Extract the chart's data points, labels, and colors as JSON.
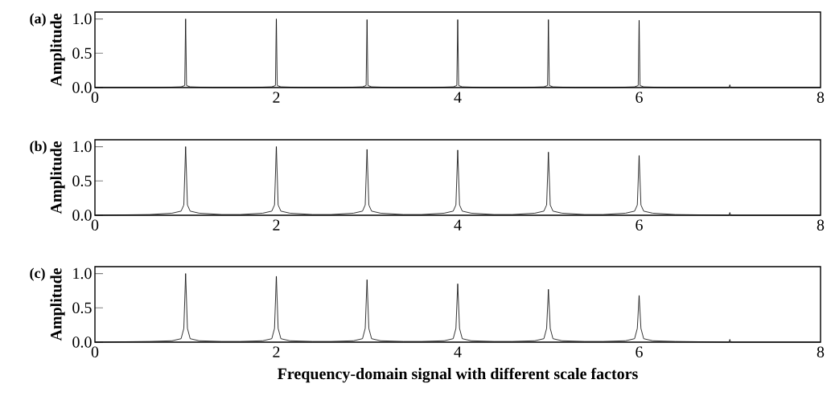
{
  "chart_data": [
    {
      "type": "line",
      "ylabel": "Amplitude",
      "annotations": [
        "(a)"
      ],
      "xlim": [
        0,
        8
      ],
      "ylim": [
        0,
        1.1
      ],
      "xticks": [
        0,
        2,
        4,
        6,
        8
      ],
      "yticks": [
        {
          "value": 0,
          "label": "0.0"
        },
        {
          "value": 0.5,
          "label": "0.5"
        },
        {
          "value": 1,
          "label": "1.0"
        }
      ],
      "grid": false,
      "marker": "none",
      "line_style": "solid",
      "series": [
        {
          "color": "#000000",
          "x": [
            0,
            0.7,
            0.95,
            0.99,
            1,
            1.01,
            1.05,
            1.3,
            1.7,
            1.95,
            1.99,
            2,
            2.01,
            2.05,
            2.3,
            2.7,
            2.95,
            2.99,
            3,
            3.01,
            3.05,
            3.3,
            3.7,
            3.95,
            3.99,
            4,
            4.01,
            4.05,
            4.3,
            4.7,
            4.95,
            4.99,
            5,
            5.01,
            5.05,
            5.3,
            5.7,
            5.95,
            5.99,
            6,
            6.01,
            6.05,
            6.3,
            6.99,
            7,
            7.01,
            8
          ],
          "values": [
            0,
            0,
            0.01,
            0.03,
            1.0,
            0.03,
            0.01,
            0,
            0,
            0.01,
            0.03,
            1.0,
            0.03,
            0.01,
            0,
            0,
            0.01,
            0.03,
            0.99,
            0.03,
            0.01,
            0,
            0,
            0.01,
            0.03,
            0.99,
            0.03,
            0.01,
            0,
            0,
            0.01,
            0.03,
            0.99,
            0.03,
            0.01,
            0,
            0,
            0.01,
            0.03,
            0.98,
            0.03,
            0.01,
            0,
            0,
            0.04,
            0,
            0
          ]
        }
      ]
    },
    {
      "type": "line",
      "ylabel": "Amplitude",
      "annotations": [
        "(b)"
      ],
      "xlim": [
        0,
        8
      ],
      "ylim": [
        0,
        1.1
      ],
      "xticks": [
        0,
        2,
        4,
        6,
        8
      ],
      "yticks": [
        {
          "value": 0,
          "label": "0.0"
        },
        {
          "value": 0.5,
          "label": "0.5"
        },
        {
          "value": 1,
          "label": "1.0"
        }
      ],
      "grid": false,
      "marker": "none",
      "line_style": "solid",
      "series": [
        {
          "color": "#000000",
          "x": [
            0,
            0.6,
            0.85,
            0.95,
            0.98,
            1,
            1.02,
            1.05,
            1.15,
            1.4,
            1.6,
            1.85,
            1.95,
            1.98,
            2,
            2.02,
            2.05,
            2.15,
            2.4,
            2.6,
            2.85,
            2.95,
            2.98,
            3,
            3.02,
            3.05,
            3.15,
            3.4,
            3.6,
            3.85,
            3.95,
            3.98,
            4,
            4.02,
            4.05,
            4.15,
            4.4,
            4.6,
            4.85,
            4.95,
            4.98,
            5,
            5.02,
            5.05,
            5.15,
            5.4,
            5.6,
            5.85,
            5.95,
            5.98,
            6,
            6.02,
            6.05,
            6.15,
            6.4,
            6.99,
            7,
            7.01,
            8
          ],
          "values": [
            0,
            0.01,
            0.03,
            0.06,
            0.15,
            1.0,
            0.15,
            0.06,
            0.03,
            0.01,
            0.01,
            0.03,
            0.06,
            0.15,
            1.0,
            0.15,
            0.06,
            0.03,
            0.01,
            0.01,
            0.03,
            0.06,
            0.15,
            0.96,
            0.15,
            0.06,
            0.03,
            0.01,
            0.01,
            0.03,
            0.06,
            0.15,
            0.95,
            0.15,
            0.06,
            0.03,
            0.01,
            0.01,
            0.03,
            0.06,
            0.15,
            0.92,
            0.15,
            0.06,
            0.03,
            0.01,
            0.01,
            0.03,
            0.06,
            0.15,
            0.87,
            0.15,
            0.06,
            0.03,
            0.01,
            0,
            0.04,
            0,
            0
          ]
        }
      ]
    },
    {
      "type": "line",
      "ylabel": "Amplitude",
      "xlabel": "Frequency-domain signal with different scale factors",
      "annotations": [
        "(c)"
      ],
      "xlim": [
        0,
        8
      ],
      "ylim": [
        0,
        1.1
      ],
      "xticks": [
        0,
        2,
        4,
        6,
        8
      ],
      "yticks": [
        {
          "value": 0,
          "label": "0.0"
        },
        {
          "value": 0.5,
          "label": "0.5"
        },
        {
          "value": 1,
          "label": "1.0"
        }
      ],
      "grid": false,
      "marker": "none",
      "line_style": "solid",
      "series": [
        {
          "color": "#000000",
          "x": [
            0,
            0.6,
            0.85,
            0.95,
            0.98,
            1,
            1.02,
            1.05,
            1.15,
            1.4,
            1.6,
            1.85,
            1.95,
            1.98,
            2,
            2.02,
            2.05,
            2.15,
            2.4,
            2.6,
            2.85,
            2.95,
            2.98,
            3,
            3.02,
            3.05,
            3.15,
            3.4,
            3.6,
            3.85,
            3.95,
            3.98,
            4,
            4.02,
            4.05,
            4.15,
            4.4,
            4.6,
            4.85,
            4.95,
            4.98,
            5,
            5.02,
            5.05,
            5.15,
            5.4,
            5.6,
            5.85,
            5.95,
            5.98,
            6,
            6.02,
            6.05,
            6.15,
            6.4,
            6.99,
            7,
            7.01,
            8
          ],
          "values": [
            0,
            0.01,
            0.02,
            0.05,
            0.2,
            1.0,
            0.2,
            0.05,
            0.02,
            0.01,
            0.01,
            0.02,
            0.05,
            0.2,
            0.96,
            0.2,
            0.05,
            0.02,
            0.01,
            0.01,
            0.02,
            0.05,
            0.2,
            0.91,
            0.2,
            0.05,
            0.02,
            0.01,
            0.01,
            0.02,
            0.05,
            0.2,
            0.85,
            0.2,
            0.05,
            0.02,
            0.01,
            0.01,
            0.02,
            0.05,
            0.2,
            0.77,
            0.2,
            0.05,
            0.02,
            0.01,
            0.01,
            0.02,
            0.05,
            0.2,
            0.68,
            0.2,
            0.05,
            0.02,
            0.01,
            0,
            0.04,
            0,
            0
          ]
        }
      ]
    }
  ]
}
